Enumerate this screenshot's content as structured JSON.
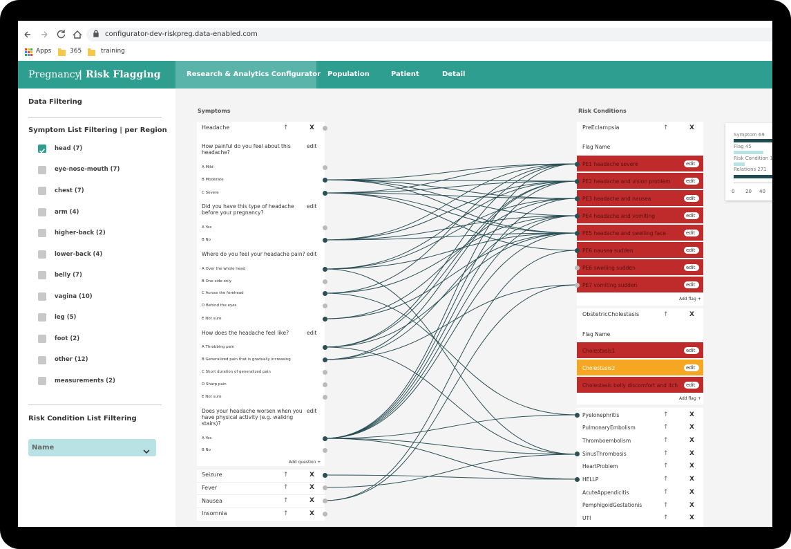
{
  "browser": {
    "url": "configurator-dev-riskpreg.data-enabled.com",
    "bookmarks": [
      "Apps",
      "365",
      "training"
    ]
  },
  "header": {
    "brand": "Pregnancy",
    "product": "| Risk Flagging",
    "nav": [
      "Research & Analytics Configurator",
      "Population",
      "Patient",
      "Detail"
    ],
    "active_nav": 0
  },
  "sidebar": {
    "title": "Data Filtering",
    "symptom_filter_title": "Symptom List Filtering | per Region",
    "regions": [
      {
        "label": "head (7)",
        "checked": true
      },
      {
        "label": "eye-nose-mouth (7)",
        "checked": false
      },
      {
        "label": "chest (7)",
        "checked": false
      },
      {
        "label": "arm (4)",
        "checked": false
      },
      {
        "label": "higher-back (2)",
        "checked": false
      },
      {
        "label": "lower-back (4)",
        "checked": false
      },
      {
        "label": "belly (7)",
        "checked": false
      },
      {
        "label": "vagina (10)",
        "checked": false
      },
      {
        "label": "leg (5)",
        "checked": false
      },
      {
        "label": "foot (2)",
        "checked": false
      },
      {
        "label": "other (12)",
        "checked": false
      },
      {
        "label": "measurements (2)",
        "checked": false
      }
    ],
    "risk_filter_title": "Risk Condition List Filtering",
    "select": "Name"
  },
  "labels": {
    "edit": "edit",
    "add_question": "Add question +",
    "add_flag": "Add flag +",
    "flag_name": "Flag Name",
    "up": "↑",
    "close": "X"
  },
  "symptoms": {
    "heading": "Symptoms",
    "expanded": {
      "name": "Headache",
      "questions": [
        {
          "text": "How painful do you feel about this headache?",
          "answers": [
            "A Mild",
            "B Moderate",
            "C Severe"
          ]
        },
        {
          "text": "Did you have this type of headache before your pregnancy?",
          "answers": [
            "A Yes",
            "B No"
          ]
        },
        {
          "text": "Where do you feel your headache pain?",
          "answers": [
            "A Over the whole head",
            "B One side only",
            "C Across the forehead",
            "D Behind the eyes",
            "E Not sure"
          ]
        },
        {
          "text": "How does the headache feel like?",
          "answers": [
            "A Throbbing pain",
            "B Generalized pain that is gradually increasing",
            "C Short duration of generalized pain",
            "D Sharp pain",
            "E Not sure"
          ]
        },
        {
          "text": "Does your headache worsen when you have physical activity (e.g. walking stairs)?",
          "answers": [
            "A Yes",
            "B No"
          ]
        }
      ]
    },
    "collapsed": [
      "Seizure",
      "Fever",
      "Nausea",
      "Insomnia"
    ]
  },
  "risk_conditions": {
    "heading": "Risk Conditions",
    "groups": [
      {
        "name": "PreEclampsia",
        "flags": [
          {
            "label": "PE1 headache severe",
            "highlight": false
          },
          {
            "label": "PE2 headache and vision problem",
            "highlight": false
          },
          {
            "label": "PE3 headache and nausea",
            "highlight": false
          },
          {
            "label": "PE4 headache and vomiting",
            "highlight": false
          },
          {
            "label": "PE5 headache and swelling face",
            "highlight": false
          },
          {
            "label": "PE6 nausea sudden",
            "highlight": false
          },
          {
            "label": "PE6 swelling sudden",
            "highlight": false
          },
          {
            "label": "PE7 vomiting sudden",
            "highlight": false
          }
        ]
      },
      {
        "name": "ObstetricCholestasis",
        "flags": [
          {
            "label": "Cholestasis1",
            "highlight": false
          },
          {
            "label": "Cholestasis2",
            "highlight": true
          },
          {
            "label": "Cholestasis belly discomfort and itch",
            "highlight": false
          }
        ]
      }
    ],
    "list": [
      "Pyelonephritis",
      "PulmonaryEmbolism",
      "Thromboembolism",
      "SinusThrombosis",
      "HeartProblem",
      "HELLP",
      "AcuteAppendicitis",
      "PemphigoidGestationis",
      "UTI"
    ]
  },
  "summary": {
    "labels": [
      "Symptom 69",
      "Flag 45",
      "Risk Condition 1",
      "Relations 271"
    ],
    "ticks": [
      "0",
      "20",
      "40"
    ]
  }
}
